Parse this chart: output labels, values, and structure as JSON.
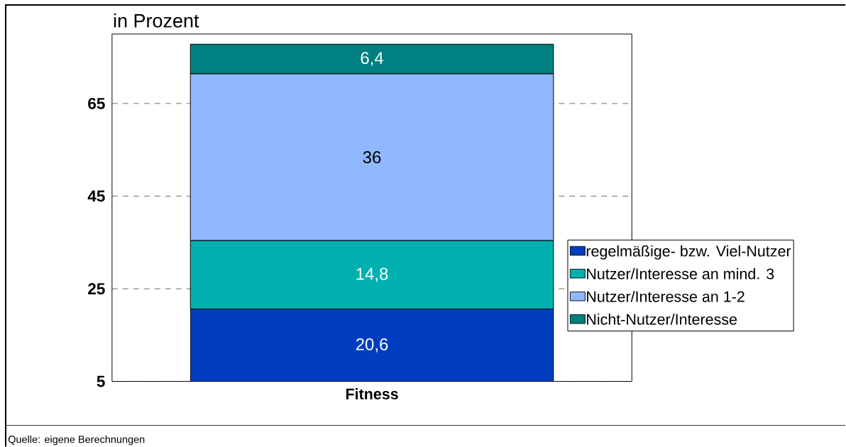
{
  "chart_data": {
    "type": "bar",
    "stacked": true,
    "ylabel": "in Prozent",
    "categories": [
      "Fitness"
    ],
    "series": [
      {
        "name": "regelmäßige- bzw. Viel-Nutzer",
        "color": "#003dbf",
        "values": [
          20.6
        ],
        "value_labels": [
          "20,6"
        ]
      },
      {
        "name": "Nutzer/Interesse an mind. 3",
        "color": "#00b0b0",
        "values": [
          14.8
        ],
        "value_labels": [
          "14,8"
        ]
      },
      {
        "name": "Nutzer/Interesse an 1-2",
        "color": "#90b8ff",
        "values": [
          36
        ],
        "value_labels": [
          "36"
        ]
      },
      {
        "name": "Nicht-Nutzer/Interesse",
        "color": "#008080",
        "values": [
          6.4
        ],
        "value_labels": [
          "6,4"
        ]
      }
    ],
    "ylim": [
      5,
      80
    ],
    "yticks": [
      5,
      25,
      45,
      65
    ],
    "grid": "y",
    "legend": "right",
    "annotations": [
      "Quelle: eigene Berechnungen"
    ]
  }
}
